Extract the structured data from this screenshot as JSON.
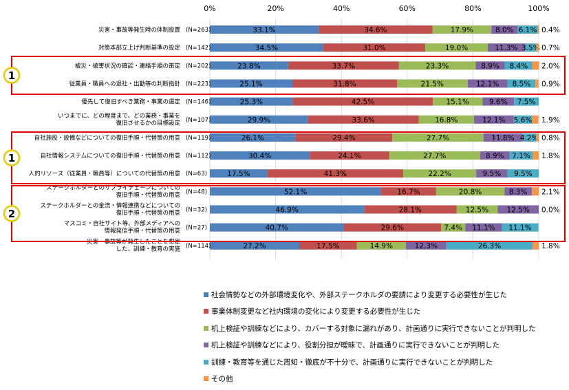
{
  "chart_data": {
    "type": "bar",
    "stacked": true,
    "orientation": "horizontal",
    "xlim": [
      0,
      100
    ],
    "x_ticks": [
      "0%",
      "20%",
      "40%",
      "60%",
      "80%",
      "100%"
    ],
    "grid": true,
    "legend_position": "bottom",
    "rows": [
      {
        "label": [
          "災害・事故等発生時の体制設置"
        ],
        "n": "(N=263)",
        "values": [
          33.1,
          34.6,
          17.9,
          8.0,
          6.1,
          0.4
        ]
      },
      {
        "label": [
          "対策本部立上げ判断基準の設定"
        ],
        "n": "(N=142)",
        "values": [
          34.5,
          31.0,
          19.0,
          11.3,
          3.5,
          0.7
        ]
      },
      {
        "label": [
          "被災・被害状況の確認・連絡手順の策定"
        ],
        "n": "(N=202)",
        "values": [
          23.8,
          33.7,
          23.3,
          8.9,
          8.4,
          2.0
        ]
      },
      {
        "label": [
          "従業員・職員への退社・出勤等の判断指針"
        ],
        "n": "(N=223)",
        "values": [
          25.1,
          31.8,
          21.5,
          12.1,
          8.5,
          0.9
        ]
      },
      {
        "label": [
          "優先して復旧すべき業務・事業の選定"
        ],
        "n": "(N=146)",
        "values": [
          25.3,
          42.5,
          15.1,
          9.6,
          7.5,
          0
        ]
      },
      {
        "label": [
          "いつまでに、どの程度まで、どの業務・事業を",
          "復旧させるかの目標設定"
        ],
        "n": "(N=107)",
        "values": [
          29.9,
          33.6,
          16.8,
          12.1,
          5.6,
          1.9
        ]
      },
      {
        "label": [
          "自社施設・設備などについての復旧手順・代替策の用意"
        ],
        "n": "(N=119)",
        "values": [
          26.1,
          29.4,
          27.7,
          11.8,
          4.2,
          0.8
        ]
      },
      {
        "label": [
          "自社情報システムについての復旧手順・代替策の用意"
        ],
        "n": "(N=112)",
        "values": [
          30.4,
          24.1,
          27.7,
          8.9,
          7.1,
          1.8
        ]
      },
      {
        "label": [
          "人的リソース（従業員・職員等）についての代替策の用意"
        ],
        "n": "(N=63)",
        "values": [
          17.5,
          41.3,
          22.2,
          9.5,
          9.5,
          0
        ]
      },
      {
        "label": [
          "ステークホルダーとのサプライチェーンについての",
          "復旧手順・代替策の用意"
        ],
        "n": "(N=48)",
        "values": [
          52.1,
          16.7,
          20.8,
          8.3,
          0,
          2.1
        ]
      },
      {
        "label": [
          "ステークホルダーとの金流・情報連携などについての",
          "復旧手順・代替策の用意"
        ],
        "n": "(N=32)",
        "values": [
          46.9,
          28.1,
          12.5,
          12.5,
          0,
          0.0
        ]
      },
      {
        "label": [
          "マスコミ・自社サイト等、外部メディアへの",
          "情報発信手順・代替策の用意"
        ],
        "n": "(N=27)",
        "values": [
          40.7,
          29.6,
          7.4,
          11.1,
          11.1,
          0
        ]
      },
      {
        "label": [
          "災害・事故等が発生したことを想定",
          "した、訓練・教育の実施"
        ],
        "n": "(N=114)",
        "values": [
          27.2,
          17.5,
          14.9,
          12.3,
          26.3,
          1.8
        ]
      }
    ],
    "series": [
      {
        "name": "社会情勢などの外部環境変化や、外部ステークホルダの要請により変更する必要性が生じた",
        "color": "#4f81bd"
      },
      {
        "name": "事業体制変更など社内環境の変化により変更する必要性が生じた",
        "color": "#c0504d"
      },
      {
        "name": "机上検証や訓練などにより、カバーする対象に漏れがあり、計画通りに実行できないことが判明した",
        "color": "#9bbb59"
      },
      {
        "name": "机上検証や訓練などにより、役割分担が曖昧で、計画通りに実行できないことが判明した",
        "color": "#8064a2"
      },
      {
        "name": "訓練・教育等を通じた周知・徹底が不十分で、計画通りに実行できないことが判明した",
        "color": "#4bacc6"
      },
      {
        "name": "その他",
        "color": "#f79646"
      }
    ],
    "group_markers": [
      {
        "label": "1",
        "color": "#e8c800"
      },
      {
        "label": "1",
        "color": "#e8c800"
      },
      {
        "label": "2",
        "color": "#e8c800"
      }
    ],
    "group_box_color": "#e00000"
  }
}
